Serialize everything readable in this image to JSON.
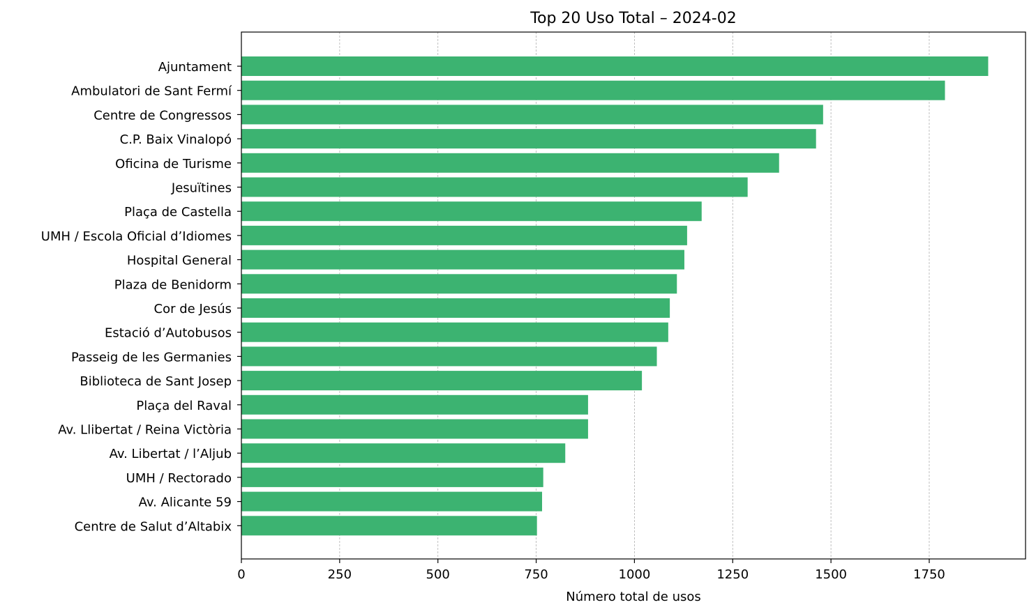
{
  "chart_data": {
    "type": "bar",
    "orientation": "horizontal",
    "title": "Top 20 Uso Total – 2024-02",
    "xlabel": "Número total de usos",
    "ylabel": "",
    "xlim": [
      0,
      1995
    ],
    "xticks": [
      0,
      250,
      500,
      750,
      1000,
      1250,
      1500,
      1750
    ],
    "xtick_labels": [
      "0",
      "250",
      "500",
      "750",
      "1000",
      "1250",
      "1500",
      "1750"
    ],
    "grid": "x-axis dashed",
    "bar_color": "#3CB371",
    "categories": [
      "Ajuntament",
      "Ambulatori de Sant Fermí",
      "Centre de Congressos",
      "C.P. Baix Vinalopó",
      "Oficina de Turisme",
      "Jesuïtines",
      "Plaça de Castella",
      "UMH / Escola Oficial d’Idiomes",
      "Hospital General",
      "Plaza de Benidorm",
      "Cor de Jesús",
      "Estació d’Autobusos",
      "Passeig de les Germanies",
      "Biblioteca de Sant Josep",
      "Plaça del Raval",
      "Av. Llibertat / Reina Victòria",
      "Av. Libertat / l’Aljub",
      "UMH / Rectorado",
      "Av. Alicante 59",
      "Centre de Salut d’Altabix"
    ],
    "values": [
      1900,
      1790,
      1480,
      1462,
      1368,
      1288,
      1171,
      1134,
      1127,
      1108,
      1090,
      1086,
      1057,
      1019,
      882,
      882,
      824,
      768,
      765,
      752
    ]
  }
}
